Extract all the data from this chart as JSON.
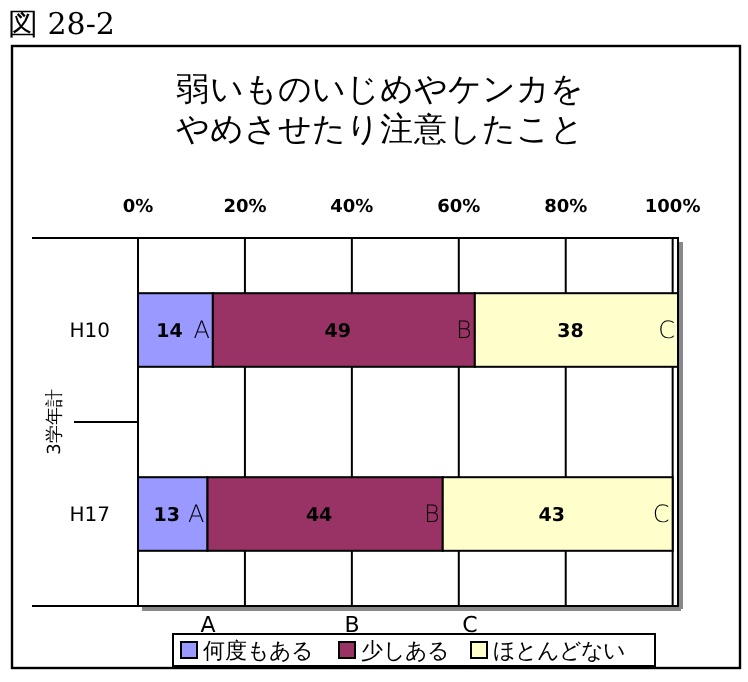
{
  "chart_data": {
    "type": "bar",
    "orientation": "horizontal",
    "stacked": true,
    "title": "弱いものいじめやケンカをやめさせたり注意したこと",
    "ylabel": "3学年計",
    "categories": [
      "H10",
      "H17"
    ],
    "series": [
      {
        "name": "何度もある",
        "color": "#9999ff",
        "values": [
          14,
          13
        ]
      },
      {
        "name": "少しある",
        "color": "#993366",
        "values": [
          49,
          44
        ]
      },
      {
        "name": "ほとんどない",
        "color": "#ffffcc",
        "values": [
          38,
          43
        ]
      }
    ],
    "xlim": [
      0,
      101
    ],
    "xticks": [
      {
        "value": 0,
        "label": "0%"
      },
      {
        "value": 20,
        "label": "20%"
      },
      {
        "value": 40,
        "label": "40%"
      },
      {
        "value": 60,
        "label": "60%"
      },
      {
        "value": 80,
        "label": "80%"
      },
      {
        "value": 100,
        "label": "100%"
      }
    ],
    "grid": "x",
    "data_labels": true,
    "legend": "bottom",
    "annotations": [
      "図 28-2",
      {
        "text": "A",
        "x": 14,
        "y": "H10"
      },
      {
        "text": "B",
        "x": 63,
        "y": "H10"
      },
      {
        "text": "C",
        "x": 101,
        "y": "H10"
      },
      {
        "text": "A",
        "x": 13,
        "y": "H17"
      },
      {
        "text": "B",
        "x": 57,
        "y": "H17"
      },
      {
        "text": "C",
        "x": 100,
        "y": "H17"
      },
      "A",
      "B",
      "C"
    ]
  }
}
